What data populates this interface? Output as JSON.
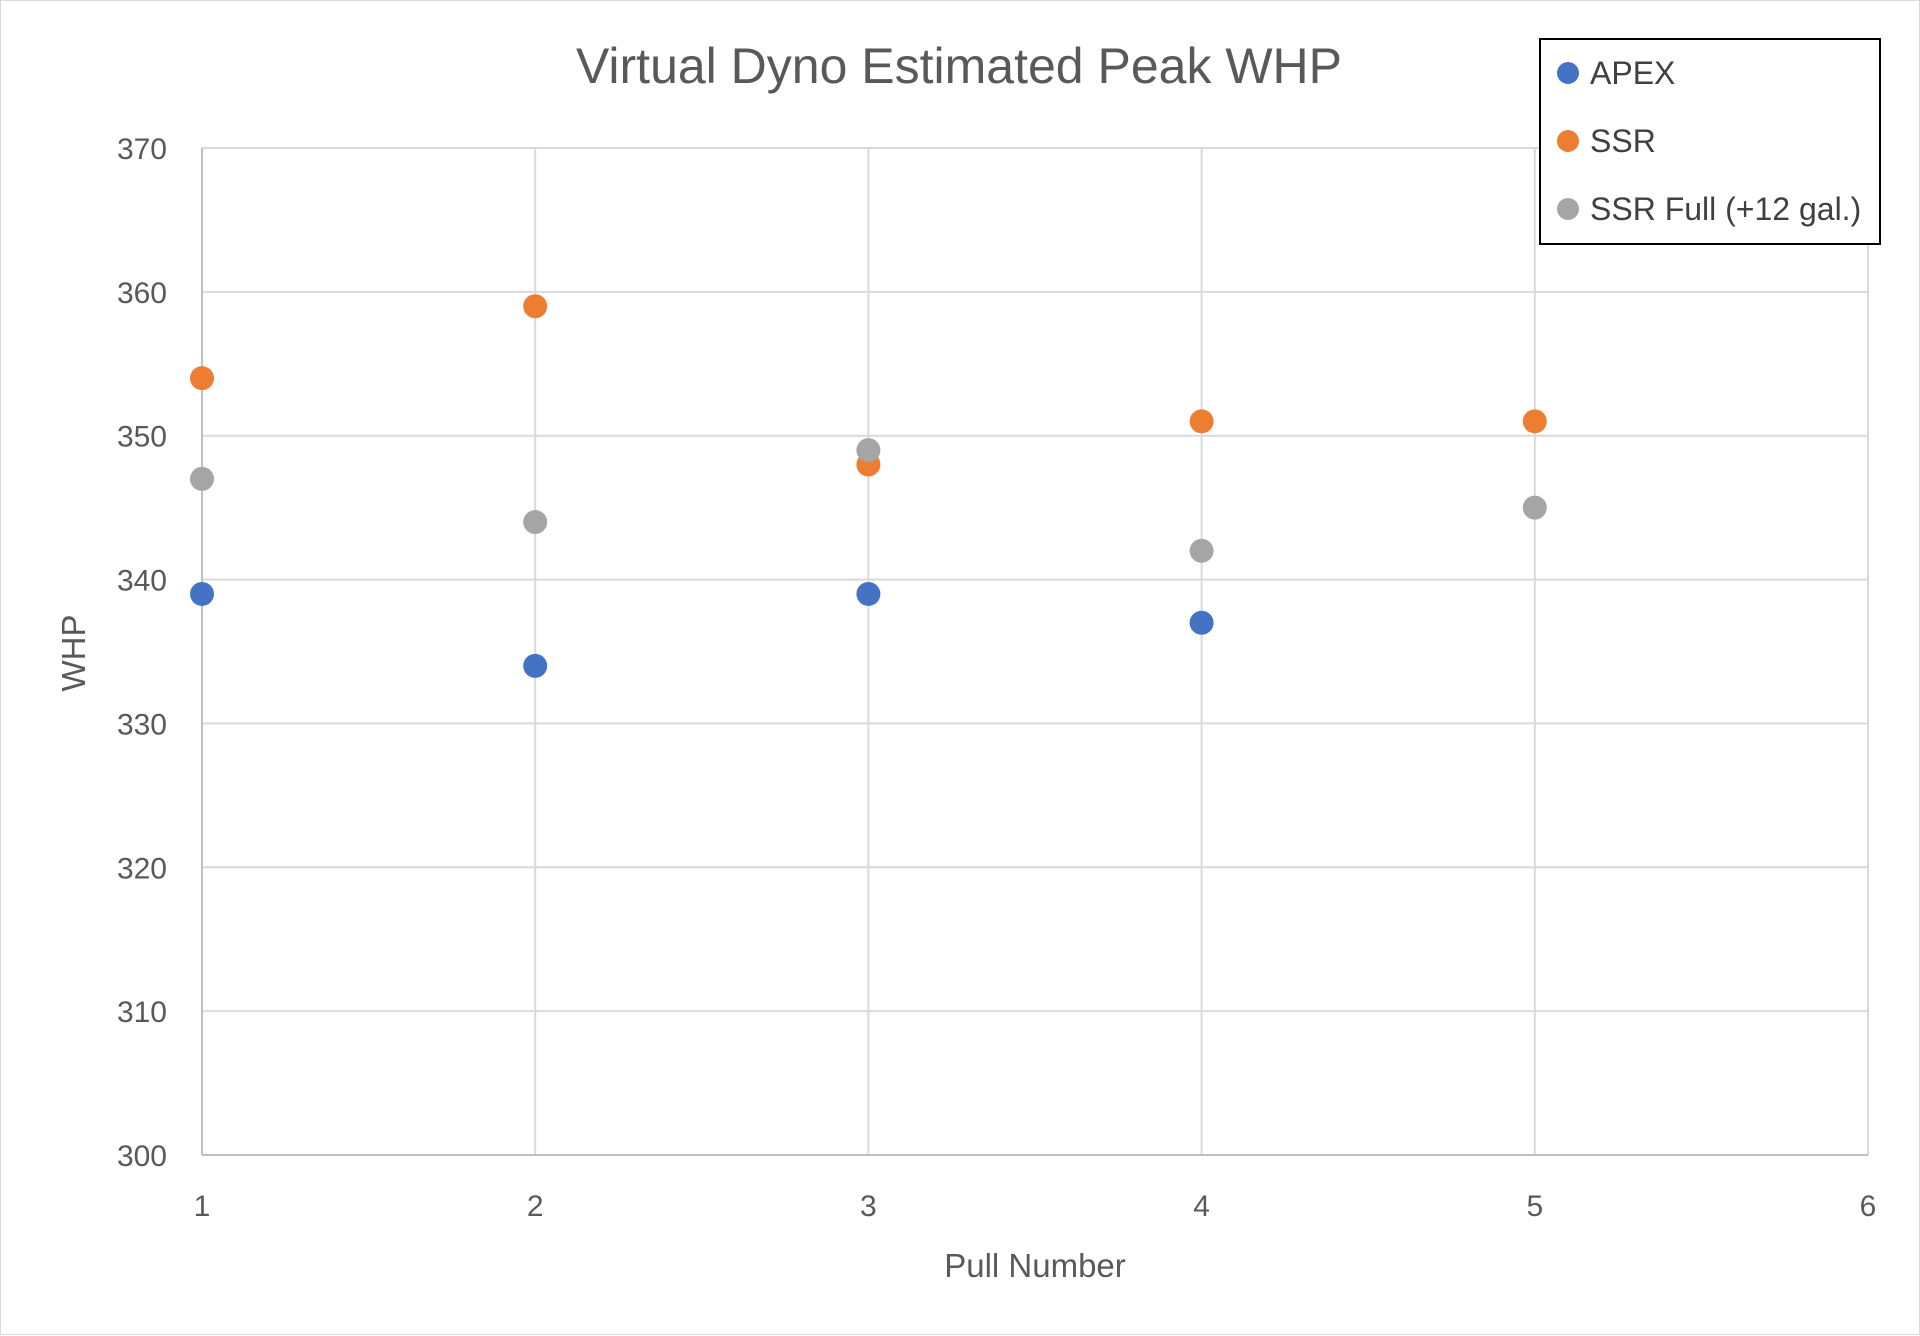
{
  "chart_data": {
    "type": "scatter",
    "title": "Virtual Dyno Estimated Peak WHP",
    "xlabel": "Pull Number",
    "ylabel": "WHP",
    "xlim": [
      1,
      6
    ],
    "ylim": [
      300,
      370
    ],
    "x_ticks": [
      "1",
      "2",
      "3",
      "4",
      "5",
      "6"
    ],
    "y_ticks": [
      "300",
      "310",
      "320",
      "330",
      "340",
      "350",
      "360",
      "370"
    ],
    "grid": true,
    "legend_position": "top-right",
    "series": [
      {
        "name": "APEX",
        "color": "#4472C4",
        "x": [
          1,
          2,
          3,
          4
        ],
        "y": [
          339,
          334,
          339,
          337
        ]
      },
      {
        "name": "SSR",
        "color": "#ED7D31",
        "x": [
          1,
          2,
          3,
          4,
          5
        ],
        "y": [
          354,
          359,
          348,
          351,
          351
        ]
      },
      {
        "name": "SSR Full (+12 gal.)",
        "color": "#A5A5A5",
        "x": [
          1,
          2,
          3,
          4,
          5
        ],
        "y": [
          347,
          344,
          349,
          342,
          345
        ]
      }
    ]
  }
}
